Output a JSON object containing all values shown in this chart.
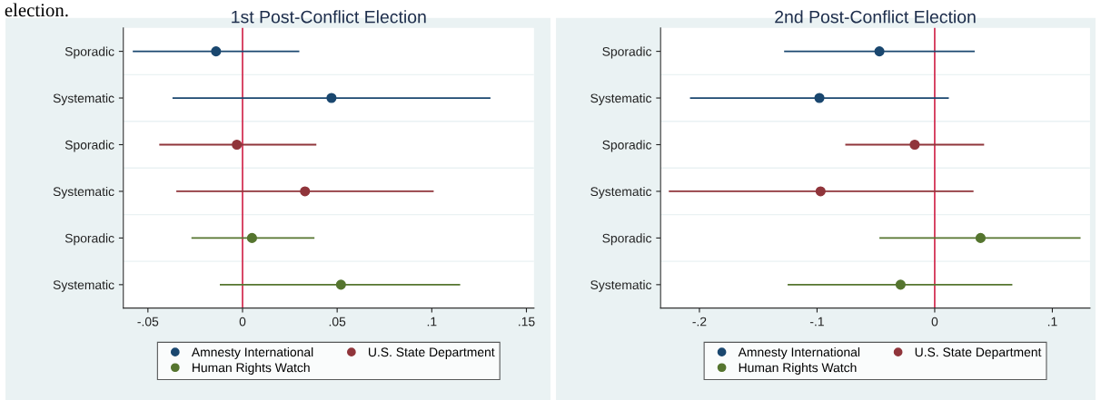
{
  "chart_data": [
    {
      "type": "scatter",
      "orientation": "horizontal",
      "title": "1st Post-Conflict Election",
      "annotations": [
        "election."
      ],
      "categories": [
        "Sporadic",
        "Systematic",
        "Sporadic",
        "Systematic",
        "Sporadic",
        "Systematic"
      ],
      "series": [
        {
          "name": "Amnesty International",
          "color": "#1a476f",
          "values": [
            -0.014,
            0.047,
            null,
            null,
            null,
            null
          ],
          "errors": [
            [
              -0.058,
              0.03
            ],
            [
              -0.037,
              0.131
            ],
            null,
            null,
            null,
            null
          ]
        },
        {
          "name": "U.S. State Department",
          "color": "#90353b",
          "values": [
            null,
            null,
            -0.003,
            0.033,
            null,
            null
          ],
          "errors": [
            null,
            null,
            [
              -0.044,
              0.039
            ],
            [
              -0.035,
              0.101
            ],
            null,
            null
          ]
        },
        {
          "name": "Human Rights Watch",
          "color": "#55752f",
          "values": [
            null,
            null,
            null,
            null,
            0.005,
            0.052
          ],
          "errors": [
            null,
            null,
            null,
            null,
            [
              -0.027,
              0.038
            ],
            [
              -0.012,
              0.115
            ]
          ]
        }
      ],
      "xlim": [
        -0.063,
        0.154
      ],
      "xticks": [
        {
          "value": -0.05,
          "label": "-.05"
        },
        0,
        {
          "value": 0.05,
          "label": ".05"
        },
        {
          "value": 0.1,
          "label": ".1"
        },
        {
          "value": 0.15,
          "label": ".15"
        }
      ],
      "ref_lines": [
        {
          "axis": "x",
          "value": 0,
          "color": "#d1244a"
        }
      ],
      "marker": "circle",
      "legend": "bottom",
      "grid": "y"
    },
    {
      "type": "scatter",
      "orientation": "horizontal",
      "title": "2nd Post-Conflict Election",
      "categories": [
        "Sporadic",
        "Systematic",
        "Sporadic",
        "Systematic",
        "Sporadic",
        "Systematic"
      ],
      "series": [
        {
          "name": "Amnesty International",
          "color": "#1a476f",
          "values": [
            -0.047,
            -0.098,
            null,
            null,
            null,
            null
          ],
          "errors": [
            [
              -0.128,
              0.034
            ],
            [
              -0.208,
              0.012
            ],
            null,
            null,
            null,
            null
          ]
        },
        {
          "name": "U.S. State Department",
          "color": "#90353b",
          "values": [
            null,
            null,
            -0.017,
            -0.097,
            null,
            null
          ],
          "errors": [
            null,
            null,
            [
              -0.076,
              0.042
            ],
            [
              -0.226,
              0.033
            ],
            null,
            null
          ]
        },
        {
          "name": "Human Rights Watch",
          "color": "#55752f",
          "values": [
            null,
            null,
            null,
            null,
            0.039,
            -0.029
          ],
          "errors": [
            null,
            null,
            null,
            null,
            [
              -0.047,
              0.124
            ],
            [
              -0.125,
              0.066
            ]
          ]
        }
      ],
      "xlim": [
        -0.233,
        0.132
      ],
      "xticks": [
        {
          "value": -0.2,
          "label": "-.2"
        },
        {
          "value": -0.1,
          "label": "-.1"
        },
        0,
        {
          "value": 0.1,
          "label": ".1"
        }
      ],
      "ref_lines": [
        {
          "axis": "x",
          "value": 0,
          "color": "#d1244a"
        }
      ],
      "marker": "circle",
      "legend": "bottom",
      "grid": "y"
    }
  ]
}
